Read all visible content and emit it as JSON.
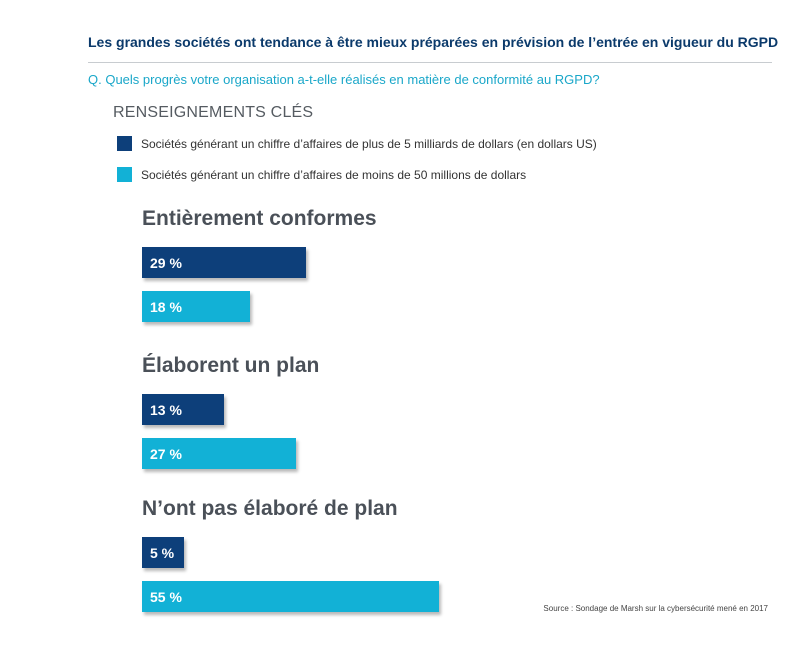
{
  "page": {
    "title": "Les grandes sociétés ont tendance à être mieux préparées en prévision de l’entrée en vigueur du RGPD",
    "question": "Q. Quels progrès votre organisation a-t-elle réalisés en matière de conformité au RGPD?",
    "source": "Source : Sondage de Marsh sur la cybersécurité mené en 2017"
  },
  "chart_data": {
    "type": "bar",
    "orientation": "horizontal",
    "legend_title": "RENSEIGNEMENTS CLÉS",
    "legend_placement": "top-left",
    "categories": [
      "Entièrement conformes",
      "Élaborent un plan",
      "N’ont pas élaboré de plan"
    ],
    "series": [
      {
        "name": "Sociétés générant un chiffre d’affaires de plus de 5 milliards de dollars (en dollars US)",
        "color": "#0d3f7a",
        "values": [
          29,
          13,
          5
        ],
        "labels": [
          "29 %",
          "13 %",
          "5 %"
        ]
      },
      {
        "name": "Sociétés générant un chiffre d’affaires de moins de 50 millions de dollars",
        "color": "#12b1d6",
        "values": [
          18,
          27,
          55
        ],
        "labels": [
          "18 %",
          "27 %",
          "55 %"
        ]
      }
    ],
    "unit": "%",
    "grid": false
  }
}
